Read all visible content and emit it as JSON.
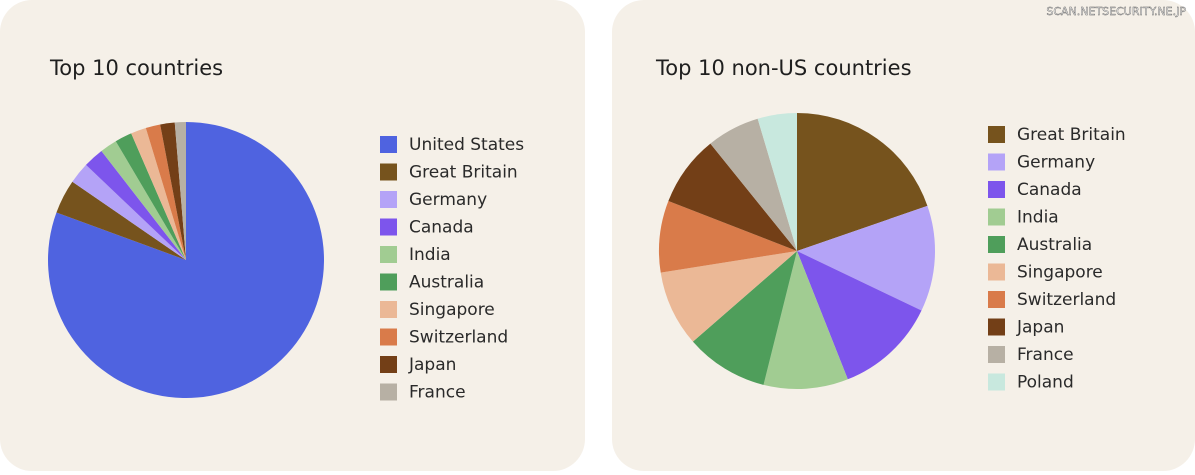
{
  "watermark": "SCAN.NETSECURITY.NE.JP",
  "chart_data": [
    {
      "type": "pie",
      "title": "Top 10 countries",
      "categories": [
        "United States",
        "Great Britain",
        "Germany",
        "Canada",
        "India",
        "Australia",
        "Singapore",
        "Switzerland",
        "Japan",
        "France"
      ],
      "values": [
        80.6,
        4.0,
        2.5,
        2.4,
        2.0,
        2.0,
        1.8,
        1.7,
        1.7,
        1.3
      ],
      "colors": [
        "#4f63e0",
        "#76531d",
        "#b4a3f7",
        "#7d55ec",
        "#a1cc92",
        "#4f9e5b",
        "#ebb896",
        "#d97b4a",
        "#733f17",
        "#b7b0a4"
      ]
    },
    {
      "type": "pie",
      "title": "Top 10 non-US countries",
      "categories": [
        "Great Britain",
        "Germany",
        "Canada",
        "India",
        "Australia",
        "Singapore",
        "Switzerland",
        "Japan",
        "France",
        "Poland"
      ],
      "values": [
        19.7,
        12.4,
        11.9,
        9.9,
        9.7,
        8.9,
        8.4,
        8.3,
        6.2,
        4.6
      ],
      "colors": [
        "#76531d",
        "#b4a3f7",
        "#7d55ec",
        "#a1cc92",
        "#4f9e5b",
        "#ebb896",
        "#d97b4a",
        "#733f17",
        "#b7b0a4",
        "#c8e8de"
      ]
    }
  ]
}
